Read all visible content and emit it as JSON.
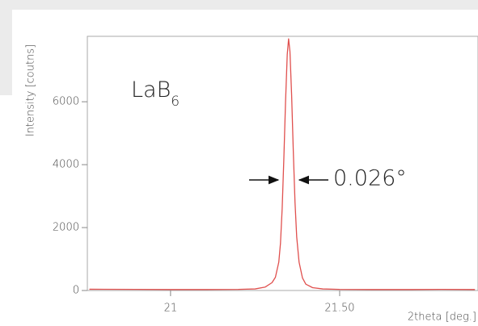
{
  "chart_data": {
    "type": "line",
    "y_label": "Intensity [coutns]",
    "x_label": "2theta [deg.]",
    "formula_base": "LaB",
    "formula_subscript": "6",
    "width_annotation": "0.026°",
    "x": [
      20.76,
      20.9,
      21.0,
      21.1,
      21.2,
      21.25,
      21.28,
      21.3,
      21.31,
      21.32,
      21.325,
      21.33,
      21.335,
      21.34,
      21.345,
      21.349,
      21.353,
      21.358,
      21.363,
      21.368,
      21.373,
      21.38,
      21.39,
      21.4,
      21.42,
      21.45,
      21.5,
      21.6,
      21.7,
      21.8,
      21.9
    ],
    "values": [
      40,
      35,
      30,
      30,
      35,
      50,
      110,
      250,
      420,
      900,
      1500,
      2600,
      4200,
      6000,
      7500,
      8000,
      7600,
      6200,
      4400,
      2800,
      1700,
      900,
      400,
      200,
      90,
      50,
      35,
      30,
      30,
      35,
      30
    ],
    "color": "#e0504e",
    "xlim": [
      20.754,
      21.909
    ],
    "ylim": [
      0,
      8080
    ],
    "xticks": [
      21,
      {
        "value": 21.5,
        "label": "21.50"
      }
    ],
    "yticks": [
      0,
      2000,
      4000,
      6000
    ]
  }
}
